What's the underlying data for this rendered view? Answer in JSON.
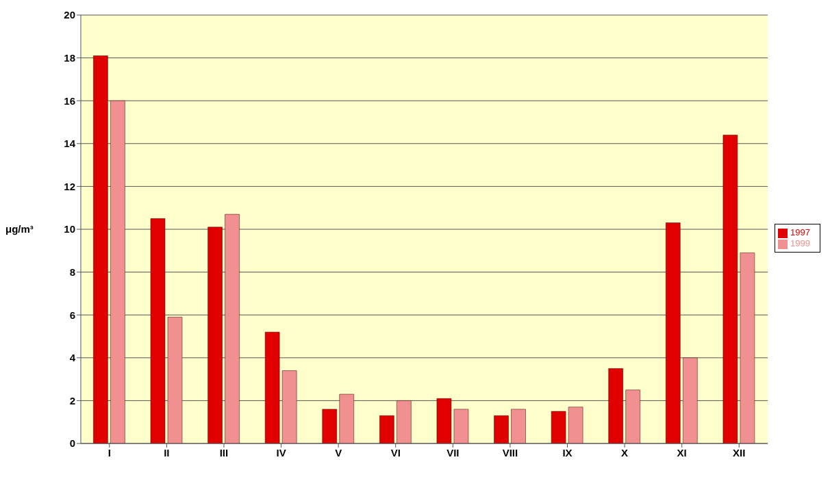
{
  "chart_data": {
    "type": "bar",
    "ylabel": "μg/m³",
    "categories": [
      "I",
      "II",
      "III",
      "IV",
      "V",
      "VI",
      "VII",
      "VIII",
      "IX",
      "X",
      "XI",
      "XII"
    ],
    "series": [
      {
        "name": "1997",
        "color": "#e00000",
        "values": [
          18.1,
          10.5,
          10.1,
          5.2,
          1.6,
          1.3,
          2.1,
          1.3,
          1.5,
          3.5,
          10.3,
          14.4
        ]
      },
      {
        "name": "1999",
        "color": "#f09090",
        "values": [
          16.0,
          5.9,
          10.7,
          3.4,
          2.3,
          2.0,
          1.6,
          1.6,
          1.7,
          2.5,
          4.0,
          8.9
        ]
      }
    ],
    "ylim": [
      0,
      20
    ],
    "yticks": [
      0,
      2,
      4,
      6,
      8,
      10,
      12,
      14,
      16,
      18,
      20
    ],
    "grid": "y",
    "legend": "right"
  }
}
